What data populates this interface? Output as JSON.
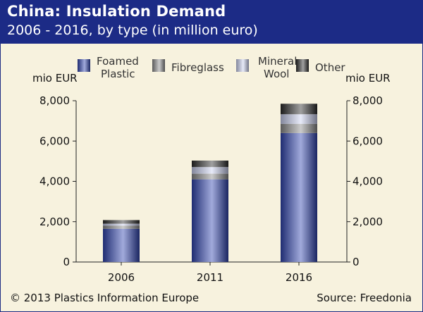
{
  "header": {
    "title": "China: Insulation Demand",
    "subtitle": "2006 - 2016, by type (in million euro)"
  },
  "footer": {
    "copyright": "© 2013 Plastics Information Europe",
    "source": "Source: Freedonia"
  },
  "colors": {
    "header_bg": "#1c2b86",
    "foamed_plastic": "#2f43b0",
    "fibreglass": "#8c8c8c",
    "mineral_wool": "#c9d0f0",
    "other": "#2b2b2b"
  },
  "chart_data": {
    "type": "bar",
    "stacked": true,
    "categories": [
      "2006",
      "2011",
      "2016"
    ],
    "series": [
      {
        "name": "Foamed Plastic",
        "values": [
          1650,
          4100,
          6400
        ]
      },
      {
        "name": "Fibreglass",
        "values": [
          150,
          280,
          450
        ]
      },
      {
        "name": "Mineral Wool",
        "values": [
          100,
          330,
          480
        ]
      },
      {
        "name": "Other",
        "values": [
          180,
          320,
          520
        ]
      }
    ],
    "legend_labels": [
      [
        "Foamed",
        "Plastic"
      ],
      [
        "Fibreglass"
      ],
      [
        "Mineral",
        "Wool"
      ],
      [
        "Other"
      ]
    ],
    "ylabel_left": "mio EUR",
    "ylabel_right": "mio EUR",
    "ylim": [
      0,
      8000
    ],
    "yticks": [
      "0",
      "2,000",
      "4,000",
      "6,000",
      "8,000"
    ],
    "grid": false,
    "legend_position": "top"
  }
}
